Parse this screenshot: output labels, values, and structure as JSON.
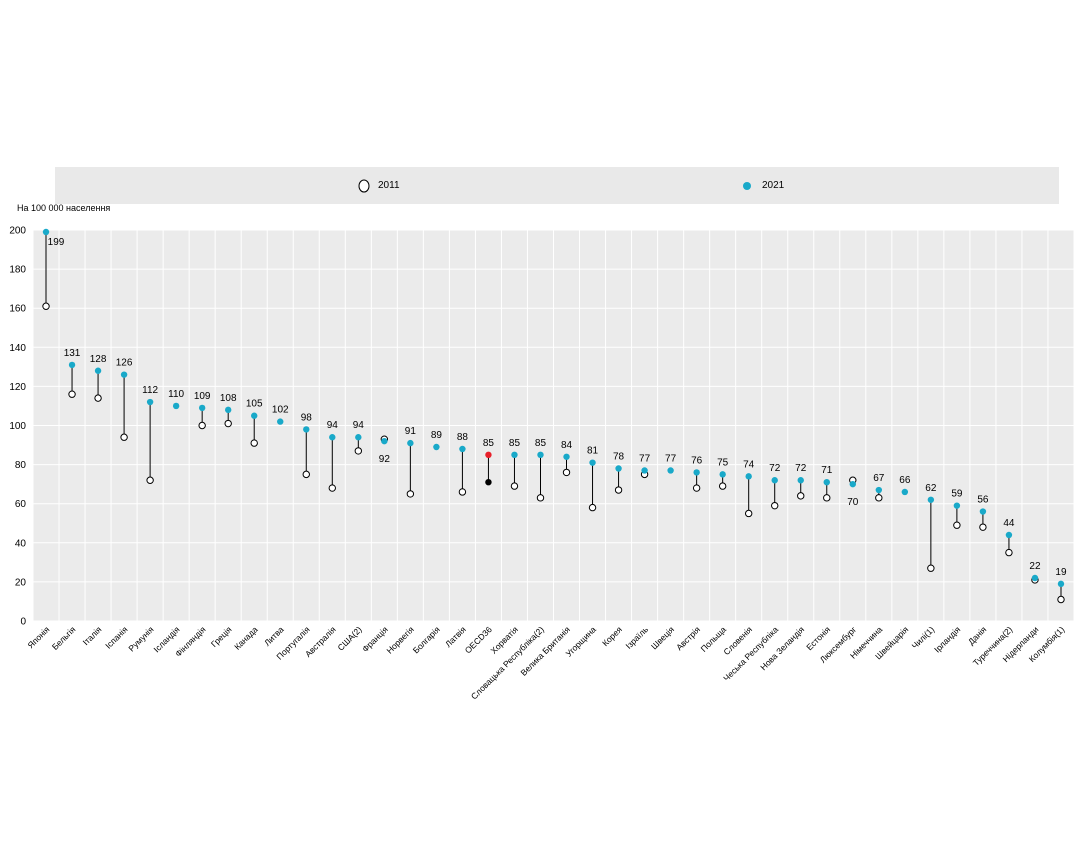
{
  "legend": {
    "items": [
      {
        "label": "2011",
        "marker": "hollow-circle",
        "color": "#000000"
      },
      {
        "label": "2021",
        "marker": "filled-circle",
        "color": "#19a9c9"
      }
    ]
  },
  "unit_label": "На 100 000 населення",
  "colors": {
    "accent": "#19a9c9",
    "highlight": "#e8202a",
    "oecd_2011": "#000000",
    "plot_background": "#ebebeb",
    "legend_background": "#e9e9e9",
    "connector": "#000000"
  },
  "chart_data": {
    "type": "dot-range",
    "ylim": [
      0,
      200
    ],
    "yticks": [
      0,
      20,
      40,
      60,
      80,
      100,
      120,
      140,
      160,
      180,
      200
    ],
    "grid": true,
    "legend_position": "top",
    "series": [
      {
        "name": "2011"
      },
      {
        "name": "2021"
      }
    ],
    "highlight_category": "OECD36",
    "points": [
      {
        "category": "Японія",
        "y2011": 161,
        "y2021": 199,
        "label": "199"
      },
      {
        "category": "Бельгія",
        "y2011": 116,
        "y2021": 131,
        "label": "131"
      },
      {
        "category": "Італія",
        "y2011": 114,
        "y2021": 128,
        "label": "128"
      },
      {
        "category": "Іспанія",
        "y2011": 94,
        "y2021": 126,
        "label": "126"
      },
      {
        "category": "Румунія",
        "y2011": 72,
        "y2021": 112,
        "label": "112"
      },
      {
        "category": "Ісландія",
        "y2011": null,
        "y2021": 110,
        "label": "110"
      },
      {
        "category": "Фінляндія",
        "y2011": 100,
        "y2021": 109,
        "label": "109"
      },
      {
        "category": "Греція",
        "y2011": 101,
        "y2021": 108,
        "label": "108"
      },
      {
        "category": "Канада",
        "y2011": 91,
        "y2021": 105,
        "label": "105"
      },
      {
        "category": "Литва",
        "y2011": null,
        "y2021": 102,
        "label": "102"
      },
      {
        "category": "Португалія",
        "y2011": 75,
        "y2021": 98,
        "label": "98"
      },
      {
        "category": "Австралія",
        "y2011": 68,
        "y2021": 94,
        "label": "94"
      },
      {
        "category": "США(2)",
        "y2011": 87,
        "y2021": 94,
        "label": "94"
      },
      {
        "category": "Франція",
        "y2011": 93,
        "y2021": 92,
        "label": "92"
      },
      {
        "category": "Норвегія",
        "y2011": 65,
        "y2021": 91,
        "label": "91"
      },
      {
        "category": "Болгарія",
        "y2011": null,
        "y2021": 89,
        "label": "89"
      },
      {
        "category": "Латвія",
        "y2011": 66,
        "y2021": 88,
        "label": "88"
      },
      {
        "category": "OECD36",
        "y2011": 71,
        "y2021": 85,
        "label": "85"
      },
      {
        "category": "Хорватія",
        "y2011": 69,
        "y2021": 85,
        "label": "85"
      },
      {
        "category": "Словацька Республіка(2)",
        "y2011": 63,
        "y2021": 85,
        "label": "85"
      },
      {
        "category": "Велика Британія",
        "y2011": 76,
        "y2021": 84,
        "label": "84"
      },
      {
        "category": "Угорщина",
        "y2011": 58,
        "y2021": 81,
        "label": "81"
      },
      {
        "category": "Корея",
        "y2011": 67,
        "y2021": 78,
        "label": "78"
      },
      {
        "category": "Ізраїль",
        "y2011": 75,
        "y2021": 77,
        "label": "77"
      },
      {
        "category": "Швеція",
        "y2011": null,
        "y2021": 77,
        "label": "77"
      },
      {
        "category": "Австрія",
        "y2011": 68,
        "y2021": 76,
        "label": "76"
      },
      {
        "category": "Польща",
        "y2011": 69,
        "y2021": 75,
        "label": "75"
      },
      {
        "category": "Словенія",
        "y2011": 55,
        "y2021": 74,
        "label": "74"
      },
      {
        "category": "Чеська Республіка",
        "y2011": 59,
        "y2021": 72,
        "label": "72"
      },
      {
        "category": "Нова Зеландія",
        "y2011": 64,
        "y2021": 72,
        "label": "72"
      },
      {
        "category": "Естонія",
        "y2011": 63,
        "y2021": 71,
        "label": "71"
      },
      {
        "category": "Люксембург",
        "y2011": 72,
        "y2021": 70,
        "label": "70"
      },
      {
        "category": "Німеччина",
        "y2011": 63,
        "y2021": 67,
        "label": "67"
      },
      {
        "category": "Швейцарія",
        "y2011": null,
        "y2021": 66,
        "label": "66"
      },
      {
        "category": "Чилі(1)",
        "y2011": 27,
        "y2021": 62,
        "label": "62"
      },
      {
        "category": "Ірландія",
        "y2011": 49,
        "y2021": 59,
        "label": "59"
      },
      {
        "category": "Данія",
        "y2011": 48,
        "y2021": 56,
        "label": "56"
      },
      {
        "category": "Туреччина(2)",
        "y2011": 35,
        "y2021": 44,
        "label": "44"
      },
      {
        "category": "Нідерланди",
        "y2011": 21,
        "y2021": 22,
        "label": "22"
      },
      {
        "category": "Колумбія(1)",
        "y2011": 11,
        "y2021": 19,
        "label": "19"
      }
    ]
  }
}
